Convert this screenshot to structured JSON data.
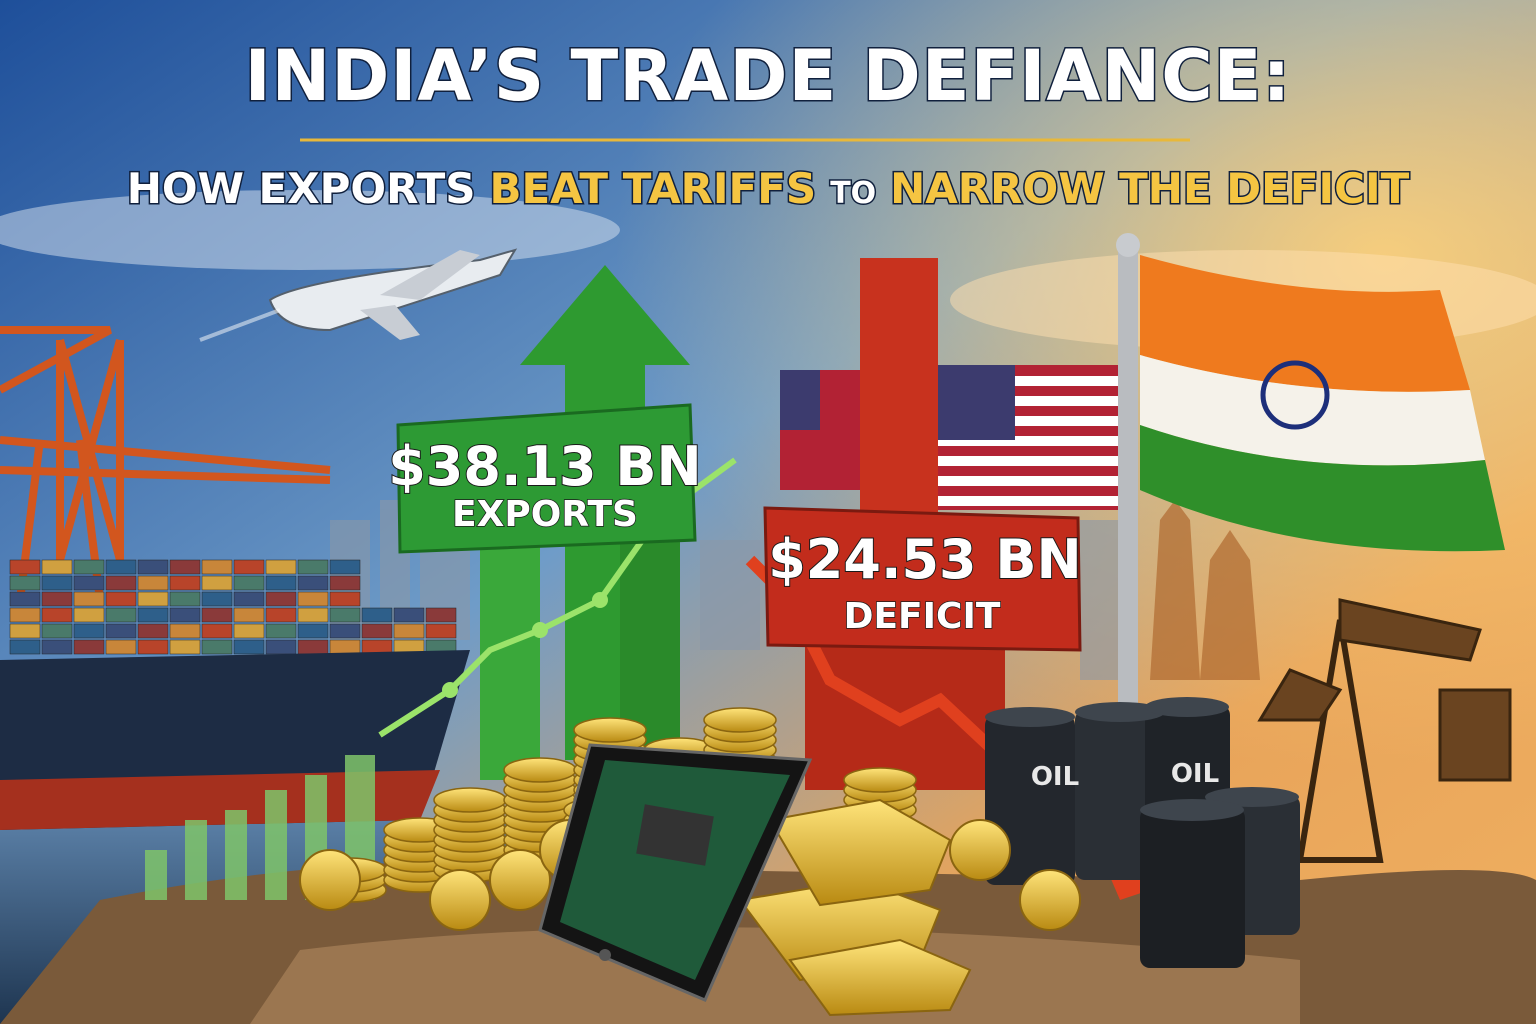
{
  "poster": {
    "title": "INDIA’S TRADE DEFIANCE:",
    "subtitle": [
      {
        "text": "HOW EXPORTS",
        "color": "#ffffff"
      },
      {
        "text": "BEAT TARIFFS",
        "color": "#f5c542"
      },
      {
        "text": "TO",
        "color": "#ffffff"
      },
      {
        "text": "NARROW THE DEFICIT",
        "color": "#f5c542"
      }
    ],
    "exports_sign": {
      "amount": "$38.13 BN",
      "label": "EXPORTS"
    },
    "deficit_sign": {
      "amount": "$24.53 BN",
      "label": "DEFICIT"
    },
    "barrel_labels": [
      "OIL",
      "OIL"
    ]
  }
}
